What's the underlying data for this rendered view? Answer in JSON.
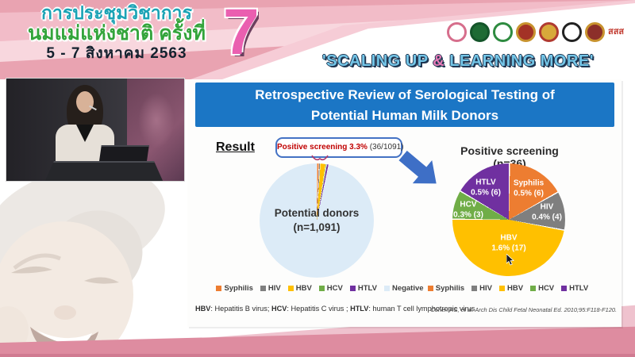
{
  "header": {
    "title_line1": "การประชุมวิชาการ",
    "title_line2": "นมแม่แห่งชาติ ครั้งที่",
    "dates": "5 - 7 สิงหาคม 2563",
    "edition_number": "7",
    "slogan_part1": "'SCALING UP ",
    "slogan_amp": "&",
    "slogan_part2": " LEARNING MORE'",
    "logos": [
      {
        "name": "mother-child-pink-logo",
        "fill": "#ffffff",
        "ring": "#D66E8C"
      },
      {
        "name": "green-seal-logo",
        "fill": "#1E6B34",
        "ring": "#14552A"
      },
      {
        "name": "green-ring-logo",
        "fill": "#ffffff",
        "ring": "#2E8B40"
      },
      {
        "name": "red-gold-temple-logo",
        "fill": "#A33226",
        "ring": "#C8922E"
      },
      {
        "name": "gold-crest-logo",
        "fill": "#D8A93A",
        "ring": "#B03A30"
      },
      {
        "name": "black-emblem-logo",
        "fill": "#ffffff",
        "ring": "#222222"
      },
      {
        "name": "dark-red-crest-logo",
        "fill": "#8C2F2A",
        "ring": "#C8922E"
      },
      {
        "name": "sss-logo",
        "text": "สสส",
        "color": "#C23B30"
      }
    ]
  },
  "slide": {
    "title_line1": "Retrospective Review of Serological Testing of",
    "title_line2": "Potential Human Milk Donors",
    "result_label": "Result",
    "callout_highlight": "Positive screening 3.3%",
    "callout_detail": " (36/1091)",
    "footnote": {
      "k1": "HBV",
      "t1": ": Hepatitis B virus; ",
      "k2": "HCV",
      "t2": ": Hepatitis C virus ; ",
      "k3": "HTLV",
      "t3": ": human T cell lymphotropic virus"
    },
    "citation": "Cohen RS, et al. Arch Dis Child Fetal Neonatal Ed. 2010;95:F118-F120."
  },
  "pie_colors": {
    "Syphilis": "#ED7D31",
    "HIV": "#7F7F7F",
    "HBV": "#FFC000",
    "HCV": "#70AD47",
    "HTLV": "#7030A0",
    "Negative": "#DCEBF7"
  },
  "chart_data": [
    {
      "type": "pie",
      "title": "Potential donors (n=1,091)",
      "center_label_line1": "Potential donors",
      "center_label_line2": "(n=1,091)",
      "total": 1091,
      "start_angle_deg": 0,
      "legend_position": "bottom",
      "slices": [
        {
          "label": "Syphilis",
          "value": 6
        },
        {
          "label": "HIV",
          "value": 4
        },
        {
          "label": "HBV",
          "value": 17
        },
        {
          "label": "HCV",
          "value": 3
        },
        {
          "label": "HTLV",
          "value": 6
        },
        {
          "label": "Negative",
          "value": 1055
        }
      ],
      "legend": [
        "Syphilis",
        "HIV",
        "HBV",
        "HCV",
        "HTLV",
        "Negative"
      ],
      "annotation": "Positive screening 3.3% (36/1091)"
    },
    {
      "type": "pie",
      "title": "Positive screening (n=36)",
      "total": 36,
      "start_angle_deg": 0,
      "legend_position": "bottom",
      "slices": [
        {
          "label": "Syphilis",
          "value": 6,
          "display": "0.5% (6)"
        },
        {
          "label": "HIV",
          "value": 4,
          "display": "0.4% (4)"
        },
        {
          "label": "HBV",
          "value": 17,
          "display": "1.6% (17)"
        },
        {
          "label": "HCV",
          "value": 3,
          "display": "0.3% (3)"
        },
        {
          "label": "HTLV",
          "value": 6,
          "display": "0.5% (6)"
        }
      ],
      "legend": [
        "Syphilis",
        "HIV",
        "HBV",
        "HCV",
        "HTLV"
      ]
    }
  ]
}
